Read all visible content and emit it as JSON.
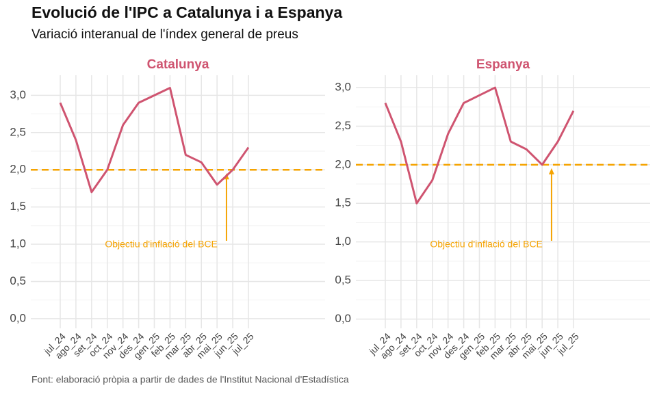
{
  "title": "Evolució de l'IPC a Catalunya i a Espanya",
  "subtitle": "Variació interanual de l'índex general de preus",
  "caption": "Font: elaboració pròpia a partir de dades de l'Institut Nacional d'Estadística",
  "chart_data": [
    {
      "type": "line",
      "title": "Catalunya",
      "categories": [
        "jul_24",
        "ago_24",
        "set_24",
        "oct_24",
        "nov_24",
        "des_24",
        "gen_25",
        "feb_25",
        "mar_25",
        "abr_25",
        "mai_25",
        "jun_25",
        "jul_25"
      ],
      "series": [
        {
          "name": "Catalunya",
          "color": "#cf5470",
          "values": [
            2.9,
            2.4,
            1.7,
            2.0,
            2.6,
            2.9,
            3.0,
            3.1,
            2.2,
            2.1,
            1.8,
            2.0,
            2.3
          ]
        }
      ],
      "ylim": [
        -0.13,
        3.27
      ],
      "yticks": [
        {
          "value": 0,
          "label": "0,0"
        },
        {
          "value": 0.5,
          "label": "0,5"
        },
        {
          "value": 1,
          "label": "1,0"
        },
        {
          "value": 1.5,
          "label": "1,5"
        },
        {
          "value": 2,
          "label": "2,0"
        },
        {
          "value": 2.5,
          "label": "2,5"
        },
        {
          "value": 3,
          "label": "3,0"
        }
      ],
      "reference_line": {
        "value": 2,
        "color": "#f5a300",
        "label": "Objectiu d'inflació del BCE"
      },
      "grid": true
    },
    {
      "type": "line",
      "title": "Espanya",
      "categories": [
        "jul_24",
        "ago_24",
        "set_24",
        "oct_24",
        "nov_24",
        "des_24",
        "gen_25",
        "feb_25",
        "mar_25",
        "abr_25",
        "mai_25",
        "jun_25",
        "jul_25"
      ],
      "series": [
        {
          "name": "Espanya",
          "color": "#cf5470",
          "values": [
            2.8,
            2.3,
            1.5,
            1.8,
            2.4,
            2.8,
            2.9,
            3.0,
            2.3,
            2.2,
            2.0,
            2.3,
            2.7
          ]
        }
      ],
      "ylim": [
        -0.12,
        3.16
      ],
      "yticks": [
        {
          "value": 0,
          "label": "0,0"
        },
        {
          "value": 0.5,
          "label": "0,5"
        },
        {
          "value": 1,
          "label": "1,0"
        },
        {
          "value": 1.5,
          "label": "1,5"
        },
        {
          "value": 2,
          "label": "2,0"
        },
        {
          "value": 2.5,
          "label": "2,5"
        },
        {
          "value": 3,
          "label": "3,0"
        }
      ],
      "reference_line": {
        "value": 2,
        "color": "#f5a300",
        "label": "Objectiu d'inflació del BCE"
      },
      "grid": true
    }
  ]
}
